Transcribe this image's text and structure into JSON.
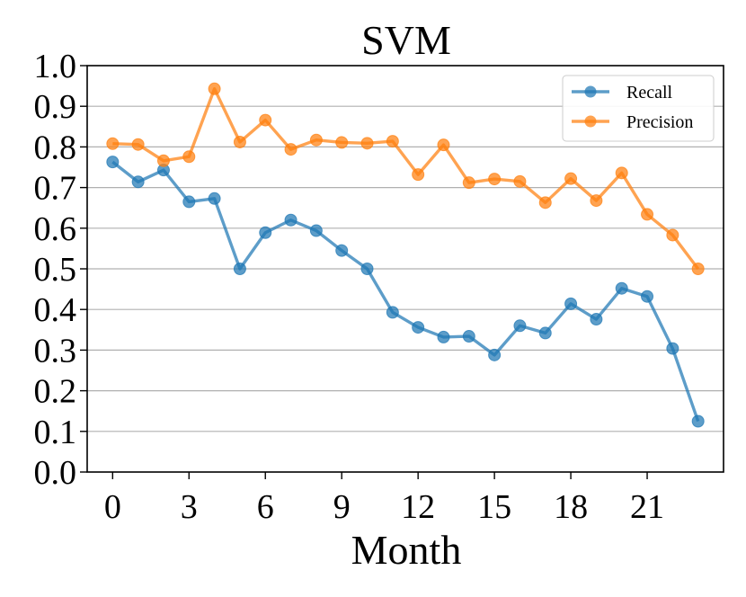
{
  "chart_data": {
    "type": "line",
    "title": "SVM",
    "xlabel": "Month",
    "ylabel": "",
    "xlim": [
      -1,
      24
    ],
    "ylim": [
      0.0,
      1.0
    ],
    "x_ticks": [
      0,
      3,
      6,
      9,
      12,
      15,
      18,
      21
    ],
    "y_ticks": [
      "0.0",
      "0.1",
      "0.2",
      "0.3",
      "0.4",
      "0.5",
      "0.6",
      "0.7",
      "0.8",
      "0.9",
      "1.0"
    ],
    "grid": "horizontal",
    "legend_position": "top-right",
    "x": [
      0,
      1,
      2,
      3,
      4,
      5,
      6,
      7,
      8,
      9,
      10,
      11,
      12,
      13,
      14,
      15,
      16,
      17,
      18,
      19,
      20,
      21,
      22,
      23
    ],
    "series": [
      {
        "name": "Recall",
        "color": "#1f77b4",
        "values": [
          0.763,
          0.714,
          0.743,
          0.665,
          0.673,
          0.5,
          0.589,
          0.62,
          0.594,
          0.545,
          0.5,
          0.393,
          0.356,
          0.332,
          0.334,
          0.288,
          0.36,
          0.342,
          0.414,
          0.376,
          0.452,
          0.432,
          0.304,
          0.125
        ]
      },
      {
        "name": "Precision",
        "color": "#ff7f0e",
        "values": [
          0.808,
          0.806,
          0.766,
          0.776,
          0.943,
          0.812,
          0.866,
          0.794,
          0.817,
          0.811,
          0.809,
          0.814,
          0.732,
          0.805,
          0.712,
          0.721,
          0.715,
          0.663,
          0.722,
          0.668,
          0.736,
          0.634,
          0.583,
          0.5
        ]
      }
    ]
  }
}
